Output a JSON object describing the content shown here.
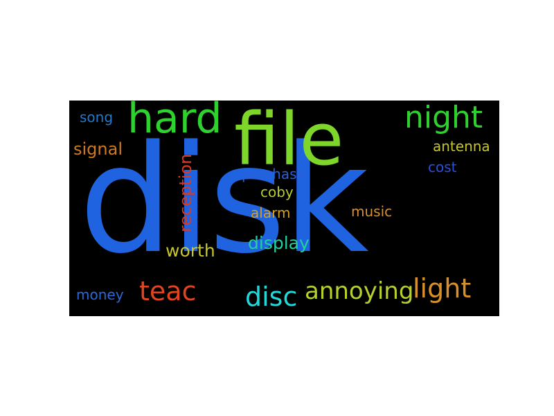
{
  "words": [
    {
      "id": "disk",
      "text": "disk",
      "color": "#1f63e0"
    },
    {
      "id": "file",
      "text": "file",
      "color": "#7ed62b"
    },
    {
      "id": "hard",
      "text": "hard",
      "color": "#2fd12f"
    },
    {
      "id": "night",
      "text": "night",
      "color": "#2fd12f"
    },
    {
      "id": "song",
      "text": "song",
      "color": "#1f7ad0"
    },
    {
      "id": "signal",
      "text": "signal",
      "color": "#d07a1f"
    },
    {
      "id": "reception",
      "text": "reception",
      "color": "#d83a22"
    },
    {
      "id": "antenna",
      "text": "antenna",
      "color": "#c6c62a"
    },
    {
      "id": "cost",
      "text": "cost",
      "color": "#2a4fd8"
    },
    {
      "id": "purchase",
      "text": "purchase",
      "color": "#2a60d8"
    },
    {
      "id": "coby",
      "text": "coby",
      "color": "#b8cc2a"
    },
    {
      "id": "alarm",
      "text": "alarm",
      "color": "#d8a020"
    },
    {
      "id": "music",
      "text": "music",
      "color": "#d89030"
    },
    {
      "id": "worth",
      "text": "worth",
      "color": "#c6c62a"
    },
    {
      "id": "display",
      "text": "display",
      "color": "#22d0a0"
    },
    {
      "id": "money",
      "text": "money",
      "color": "#2a6ad8"
    },
    {
      "id": "teac",
      "text": "teac",
      "color": "#e04520"
    },
    {
      "id": "disc",
      "text": "disc",
      "color": "#22d8d8"
    },
    {
      "id": "annoying",
      "text": "annoying",
      "color": "#b8d02a"
    },
    {
      "id": "light",
      "text": "light",
      "color": "#d8902a"
    }
  ]
}
